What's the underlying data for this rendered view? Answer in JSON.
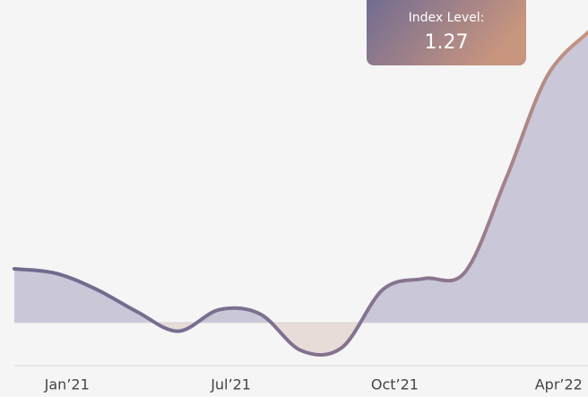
{
  "chart_data": {
    "type": "line",
    "categories": [
      null,
      "Jan’21",
      null,
      null,
      null,
      "Jul’21",
      null,
      null,
      null,
      "Oct’21",
      null,
      null,
      null,
      "Apr’22",
      null
    ],
    "values": [
      1.05,
      1.046,
      1.031,
      1.01,
      0.992,
      1.012,
      1.008,
      0.974,
      0.977,
      1.031,
      1.041,
      1.047,
      1.134,
      1.229,
      1.27
    ],
    "baseline": 1,
    "ylim": [
      0.96,
      1.3
    ],
    "color": "#6e6a8e",
    "tooltip_label": "Index Level:"
  }
}
